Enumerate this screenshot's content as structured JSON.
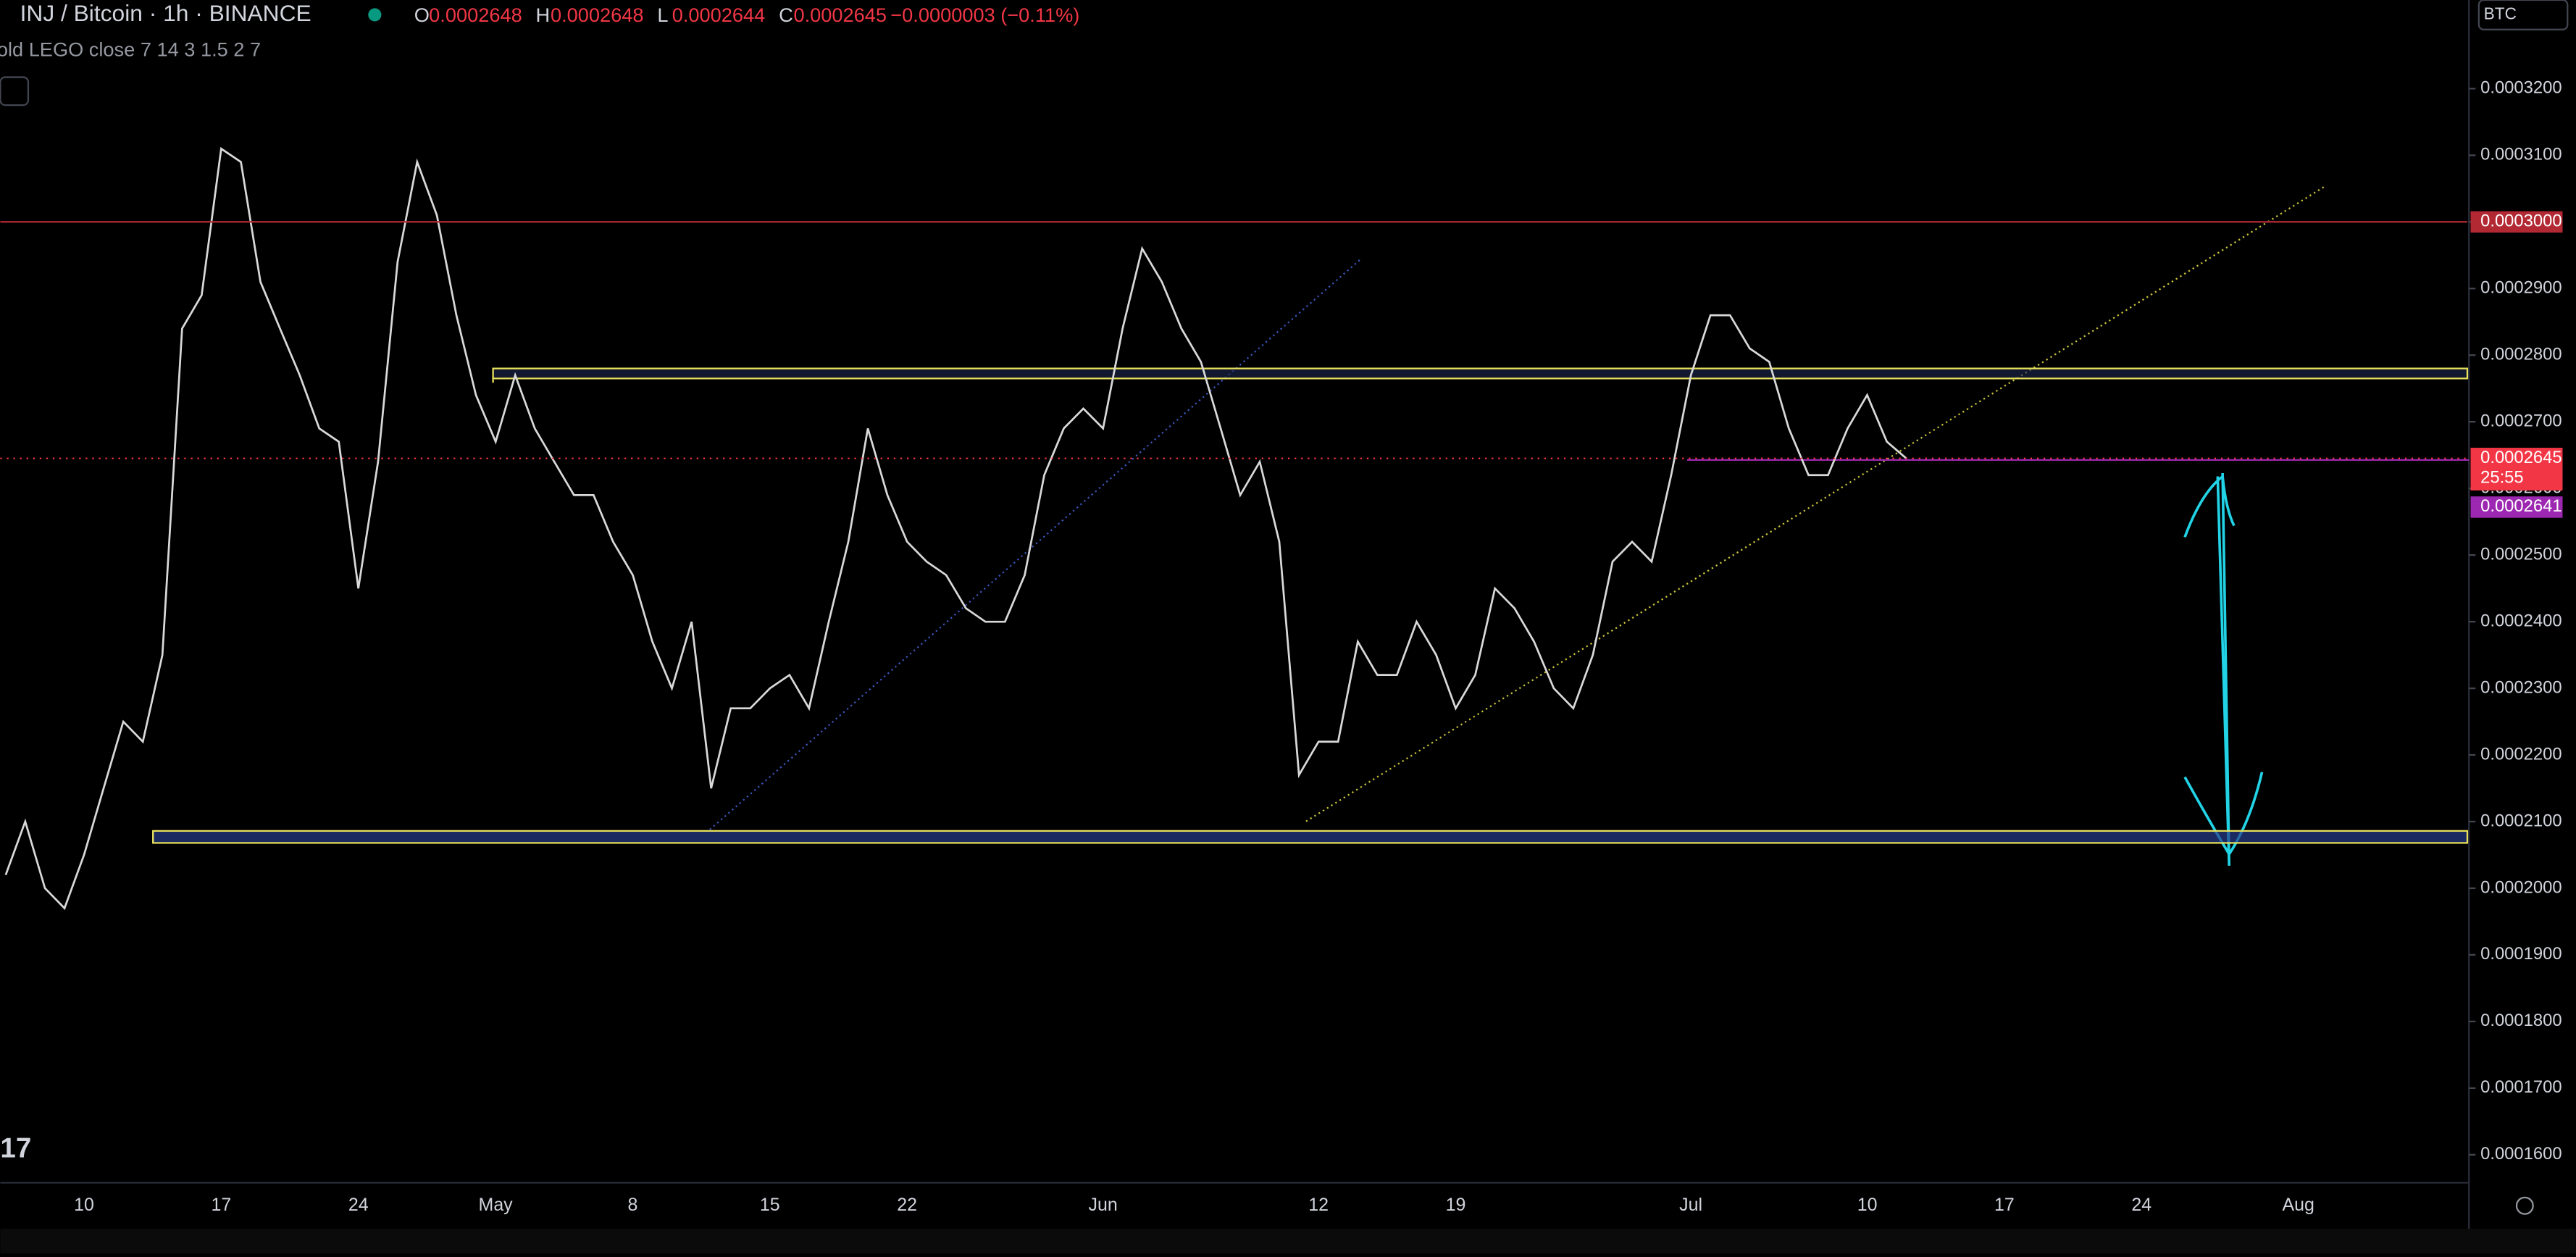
{
  "header": {
    "symbol": "INJ / Bitcoin · 1h · BINANCE",
    "ohlc": [
      {
        "key": "O",
        "value": "0.0002648"
      },
      {
        "key": "H",
        "value": "0.0002648"
      },
      {
        "key": "L",
        "value": "0.0002644"
      },
      {
        "key": "C",
        "value": "0.0002645"
      }
    ],
    "change": "−0.0000003 (−0.11%)",
    "indicator": "old LEGO close 7 14 3 1.5 2 7",
    "currency": "BTC"
  },
  "chart_data": {
    "type": "line",
    "color": "#d9d9d9",
    "categories": [
      null,
      null,
      null,
      null,
      "10",
      null,
      null,
      null,
      null,
      null,
      null,
      "17",
      null,
      null,
      null,
      null,
      null,
      null,
      "24",
      null,
      null,
      null,
      null,
      null,
      null,
      "May",
      null,
      null,
      null,
      null,
      null,
      null,
      "8",
      null,
      null,
      null,
      null,
      null,
      null,
      "15",
      null,
      null,
      null,
      null,
      null,
      null,
      "22",
      null,
      null,
      null,
      null,
      null,
      null,
      null,
      null,
      null,
      "Jun",
      null,
      null,
      null,
      null,
      null,
      null,
      null,
      null,
      null,
      null,
      "12",
      null,
      null,
      null,
      null,
      null,
      null,
      "19",
      null,
      null,
      null,
      null,
      null,
      null,
      null,
      null,
      null,
      null,
      null,
      "Jul",
      null,
      null,
      null,
      null,
      null,
      null,
      null,
      null,
      "10",
      null,
      null,
      null,
      null,
      null,
      null,
      "17",
      null,
      null,
      null,
      null,
      null,
      null,
      "24",
      null,
      null,
      null,
      null,
      null,
      null,
      null,
      "Aug",
      null,
      null,
      null,
      null,
      null,
      null,
      null,
      null
    ],
    "values": [
      0.000202,
      0.00021,
      0.0002,
      0.000197,
      0.000205,
      0.000215,
      0.000225,
      0.000222,
      0.000235,
      0.000284,
      0.000289,
      0.000311,
      0.000309,
      0.000291,
      0.000284,
      0.000277,
      0.000269,
      0.000267,
      0.000245,
      0.000264,
      0.000294,
      0.000309,
      0.000301,
      0.000286,
      0.000274,
      0.000267,
      0.000277,
      0.000269,
      0.000264,
      0.000259,
      0.000259,
      0.000252,
      0.000247,
      0.000237,
      0.00023,
      0.00024,
      0.000215,
      0.000227,
      0.000227,
      0.00023,
      0.000232,
      0.000227,
      0.00024,
      0.000252,
      0.000269,
      0.000259,
      0.000252,
      0.000249,
      0.000247,
      0.000242,
      0.00024,
      0.00024,
      0.000247,
      0.000262,
      0.000269,
      0.000272,
      0.000269,
      0.000284,
      0.000296,
      0.000291,
      0.000284,
      0.000279,
      0.000269,
      0.000259,
      0.000264,
      0.000252,
      0.000217,
      0.000222,
      0.000222,
      0.000237,
      0.000232,
      0.000232,
      0.00024,
      0.000235,
      0.000227,
      0.000232,
      0.000245,
      0.000242,
      0.000237,
      0.00023,
      0.000227,
      0.000235,
      0.000249,
      0.000252,
      0.000249,
      0.000262,
      0.000277,
      0.000286,
      0.000286,
      0.000281,
      0.000279,
      0.000269,
      0.000262,
      0.000262,
      0.000269,
      0.000274,
      0.000267,
      0.0002645,
      null,
      null,
      null,
      null,
      null,
      null,
      null,
      null,
      null,
      null,
      null,
      null,
      null,
      null,
      null,
      null,
      null,
      null,
      null,
      null,
      null,
      null,
      null,
      null,
      null,
      null,
      null,
      null
    ],
    "ylim": [
      0.0001558,
      0.0003333
    ],
    "yticks": [
      {
        "value": 0.00016,
        "label": "0.0001600"
      },
      {
        "value": 0.00017,
        "label": "0.0001700"
      },
      {
        "value": 0.00018,
        "label": "0.0001800"
      },
      {
        "value": 0.00019,
        "label": "0.0001900"
      },
      {
        "value": 0.0002,
        "label": "0.0002000"
      },
      {
        "value": 0.00021,
        "label": "0.0002100"
      },
      {
        "value": 0.00022,
        "label": "0.0002200"
      },
      {
        "value": 0.00023,
        "label": "0.0002300"
      },
      {
        "value": 0.00024,
        "label": "0.0002400"
      },
      {
        "value": 0.00025,
        "label": "0.0002500"
      },
      {
        "value": 0.00026,
        "label": "0.0002600"
      },
      {
        "value": 0.00027,
        "label": "0.0002700"
      },
      {
        "value": 0.00028,
        "label": "0.0002800"
      },
      {
        "value": 0.00029,
        "label": "0.0002900"
      },
      {
        "value": 0.0003,
        "label": "0.0003000"
      },
      {
        "value": 0.00031,
        "label": "0.0003100"
      },
      {
        "value": 0.00032,
        "label": "0.0003200"
      }
    ],
    "levels": [
      {
        "value": 0.0003,
        "label": "0.0003000",
        "color": "#b22833"
      },
      {
        "value": 0.0002645,
        "label": "0.0002645",
        "countdown": "25:55",
        "color": "#f23645"
      },
      {
        "value": 0.0002641,
        "label": "0.0002641",
        "color": "#9c27b0"
      }
    ],
    "zones": [
      {
        "from": 0.0002765,
        "to": 0.000278,
        "color": "#e8e15a"
      },
      {
        "from": 0.0002068,
        "to": 0.0002086,
        "color": "#e8e15a"
      }
    ]
  }
}
